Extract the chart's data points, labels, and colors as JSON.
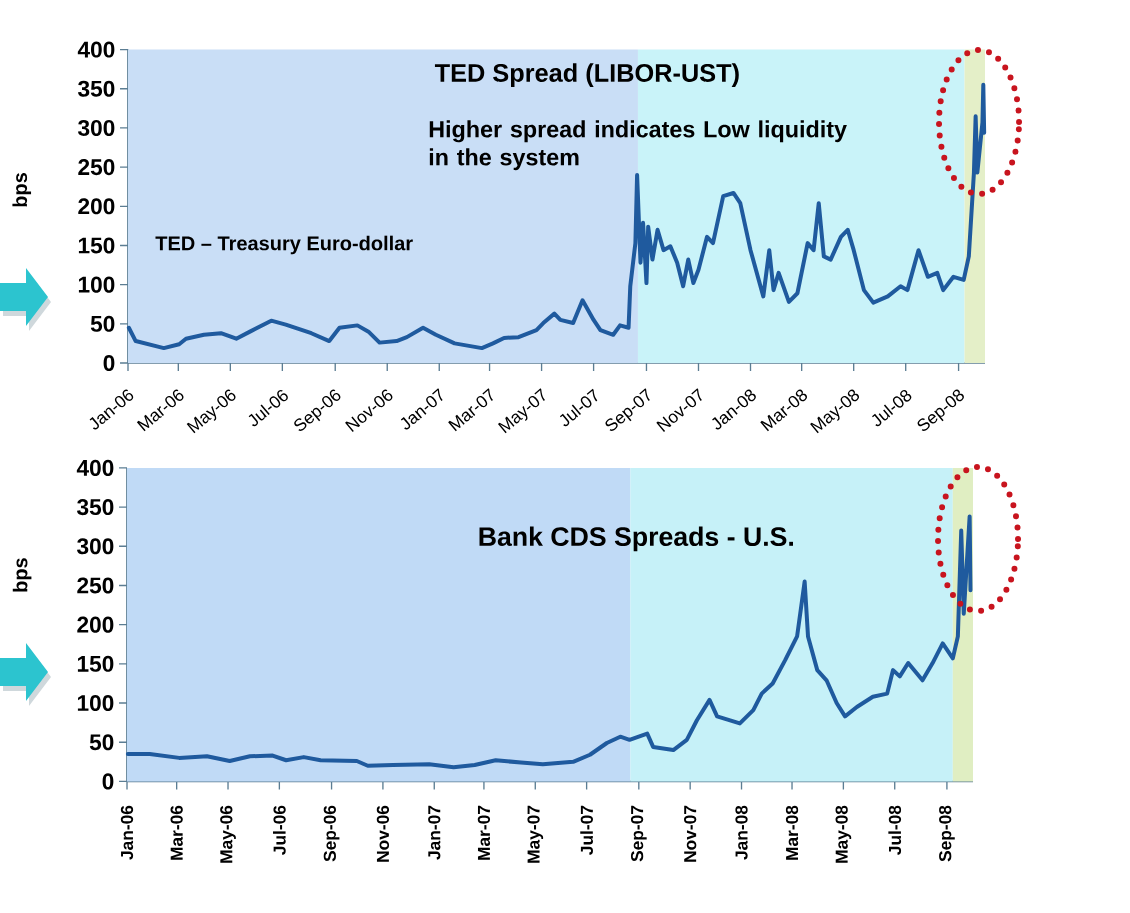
{
  "chart_data": [
    {
      "type": "line",
      "title": "TED Spread (LIBOR-UST)",
      "ylabel": "bps",
      "annotations": [
        "Higher spread indicates Low liquidity in the system",
        "TED – Treasury Euro-dollar"
      ],
      "x": [
        "2006-01-02",
        "2006-01-10",
        "2006-02-12",
        "2006-03-02",
        "2006-03-10",
        "2006-03-31",
        "2006-04-20",
        "2006-05-08",
        "2006-05-24",
        "2006-06-18",
        "2006-07-05",
        "2006-08-04",
        "2006-08-25",
        "2006-09-06",
        "2006-09-27",
        "2006-10-10",
        "2006-10-23",
        "2006-11-12",
        "2006-11-24",
        "2006-12-13",
        "2006-12-28",
        "2007-01-19",
        "2007-02-20",
        "2007-03-05",
        "2007-03-18",
        "2007-04-04",
        "2007-04-25",
        "2007-05-03",
        "2007-05-16",
        "2007-05-23",
        "2007-06-07",
        "2007-06-18",
        "2007-07-01",
        "2007-07-09",
        "2007-07-24",
        "2007-08-01",
        "2007-08-11",
        "2007-08-13",
        "2007-08-19",
        "2007-08-21",
        "2007-08-25",
        "2007-08-28",
        "2007-09-01",
        "2007-09-03",
        "2007-09-08",
        "2007-09-14",
        "2007-09-21",
        "2007-09-29",
        "2007-10-07",
        "2007-10-14",
        "2007-10-20",
        "2007-10-26",
        "2007-11-01",
        "2007-11-11",
        "2007-11-18",
        "2007-11-30",
        "2007-12-12",
        "2007-12-20",
        "2008-01-01",
        "2008-01-16",
        "2008-01-23",
        "2008-01-28",
        "2008-02-03",
        "2008-02-15",
        "2008-02-25",
        "2008-03-08",
        "2008-03-15",
        "2008-03-21",
        "2008-03-27",
        "2008-04-04",
        "2008-04-16",
        "2008-04-24",
        "2008-05-01",
        "2008-05-13",
        "2008-05-24",
        "2008-06-10",
        "2008-06-25",
        "2008-07-03",
        "2008-07-16",
        "2008-07-27",
        "2008-08-07",
        "2008-08-14",
        "2008-08-26",
        "2008-09-07",
        "2008-09-13",
        "2008-09-19",
        "2008-09-21",
        "2008-09-23",
        "2008-09-29",
        "2008-09-30",
        "2008-10-01"
      ],
      "series": [
        {
          "color": "#1f5a9e",
          "values": [
            45,
            28,
            19,
            24,
            31,
            36,
            38,
            31,
            40,
            54,
            49,
            38,
            28,
            45,
            48,
            40,
            26,
            28,
            33,
            45,
            36,
            25,
            19,
            25,
            32,
            33,
            42,
            51,
            63,
            55,
            51,
            80,
            55,
            42,
            36,
            48,
            45,
            98,
            153,
            240,
            128,
            179,
            102,
            174,
            132,
            170,
            144,
            149,
            128,
            98,
            132,
            102,
            119,
            161,
            153,
            213,
            217,
            204,
            144,
            85,
            144,
            93,
            115,
            78,
            89,
            153,
            144,
            204,
            136,
            132,
            161,
            170,
            144,
            93,
            77,
            85,
            98,
            93,
            144,
            110,
            115,
            93,
            110,
            106,
            136,
            243,
            315,
            243,
            307,
            355,
            294
          ]
        }
      ],
      "xlim": [
        "2006-01-01",
        "2008-10-02"
      ],
      "xticks": [
        {
          "value": "2006-01-01",
          "label": "Jan-06"
        },
        {
          "value": "2006-03-01",
          "label": "Mar-06"
        },
        {
          "value": "2006-05-01",
          "label": "May-06"
        },
        {
          "value": "2006-07-01",
          "label": "Jul-06"
        },
        {
          "value": "2006-09-01",
          "label": "Sep-06"
        },
        {
          "value": "2006-11-01",
          "label": "Nov-06"
        },
        {
          "value": "2007-01-01",
          "label": "Jan-07"
        },
        {
          "value": "2007-03-01",
          "label": "Mar-07"
        },
        {
          "value": "2007-05-01",
          "label": "May-07"
        },
        {
          "value": "2007-07-01",
          "label": "Jul-07"
        },
        {
          "value": "2007-09-01",
          "label": "Sep-07"
        },
        {
          "value": "2007-11-01",
          "label": "Nov-07"
        },
        {
          "value": "2008-01-01",
          "label": "Jan-08"
        },
        {
          "value": "2008-03-01",
          "label": "Mar-08"
        },
        {
          "value": "2008-05-01",
          "label": "May-08"
        },
        {
          "value": "2008-07-01",
          "label": "Jul-08"
        },
        {
          "value": "2008-09-01",
          "label": "Sep-08"
        }
      ],
      "ylim": [
        0,
        400
      ],
      "yticks": [
        0,
        50,
        100,
        150,
        200,
        250,
        300,
        350,
        400
      ],
      "bands": [
        {
          "axis": "x",
          "from": "2006-01-01",
          "to": "2007-08-22",
          "color": "#c9def6"
        },
        {
          "axis": "x",
          "from": "2007-08-22",
          "to": "2008-09-08",
          "color": "#c9f3f9"
        },
        {
          "axis": "x",
          "from": "2008-09-08",
          "to": "2008-10-02",
          "color": "#e4efc8"
        }
      ]
    },
    {
      "type": "line",
      "title": "Bank CDS Spreads - U.S.",
      "ylabel": "bps",
      "x": [
        "2006-01-02",
        "2006-01-28",
        "2006-03-04",
        "2006-04-06",
        "2006-05-03",
        "2006-05-27",
        "2006-06-23",
        "2006-07-09",
        "2006-07-30",
        "2006-08-19",
        "2006-10-01",
        "2006-10-14",
        "2006-11-13",
        "2006-12-26",
        "2007-01-24",
        "2007-02-18",
        "2007-03-15",
        "2007-04-14",
        "2007-05-10",
        "2007-06-15",
        "2007-07-05",
        "2007-07-25",
        "2007-08-10",
        "2007-08-21",
        "2007-09-11",
        "2007-09-18",
        "2007-10-12",
        "2007-10-28",
        "2007-11-09",
        "2007-11-24",
        "2007-12-03",
        "2007-12-30",
        "2008-01-15",
        "2008-01-25",
        "2008-02-07",
        "2008-02-22",
        "2008-03-07",
        "2008-03-16",
        "2008-03-20",
        "2008-03-31",
        "2008-04-11",
        "2008-04-23",
        "2008-05-03",
        "2008-05-17",
        "2008-06-05",
        "2008-06-22",
        "2008-06-29",
        "2008-07-07",
        "2008-07-17",
        "2008-08-03",
        "2008-08-15",
        "2008-08-27",
        "2008-09-08",
        "2008-09-14",
        "2008-09-18",
        "2008-09-21",
        "2008-09-28",
        "2008-09-29"
      ],
      "series": [
        {
          "color": "#1f5a9e",
          "values": [
            35,
            35,
            30,
            32,
            26,
            32,
            33,
            27,
            31,
            27,
            26,
            20,
            21,
            22,
            18,
            21,
            27,
            24,
            22,
            25,
            34,
            49,
            57,
            53,
            61,
            44,
            40,
            53,
            78,
            104,
            83,
            74,
            91,
            112,
            125,
            155,
            185,
            255,
            185,
            142,
            129,
            100,
            83,
            95,
            108,
            112,
            142,
            134,
            151,
            129,
            151,
            176,
            157,
            185,
            320,
            214,
            338,
            244
          ]
        }
      ],
      "xlim": [
        "2006-01-01",
        "2008-10-02"
      ],
      "xticks": [
        {
          "value": "2006-01-01",
          "label": "Jan-06"
        },
        {
          "value": "2006-03-01",
          "label": "Mar-06"
        },
        {
          "value": "2006-05-01",
          "label": "May-06"
        },
        {
          "value": "2006-07-01",
          "label": "Jul-06"
        },
        {
          "value": "2006-09-01",
          "label": "Sep-06"
        },
        {
          "value": "2006-11-01",
          "label": "Nov-06"
        },
        {
          "value": "2007-01-01",
          "label": "Jan-07"
        },
        {
          "value": "2007-03-01",
          "label": "Mar-07"
        },
        {
          "value": "2007-05-01",
          "label": "May-07"
        },
        {
          "value": "2007-07-01",
          "label": "Jul-07"
        },
        {
          "value": "2007-09-01",
          "label": "Sep-07"
        },
        {
          "value": "2007-11-01",
          "label": "Nov-07"
        },
        {
          "value": "2008-01-01",
          "label": "Jan-08"
        },
        {
          "value": "2008-03-01",
          "label": "Mar-08"
        },
        {
          "value": "2008-05-01",
          "label": "May-08"
        },
        {
          "value": "2008-07-01",
          "label": "Jul-08"
        },
        {
          "value": "2008-09-01",
          "label": "Sep-08"
        }
      ],
      "ylim": [
        0,
        400
      ],
      "yticks": [
        0,
        50,
        100,
        150,
        200,
        250,
        300,
        350,
        400
      ],
      "bands": [
        {
          "axis": "x",
          "from": "2006-01-01",
          "to": "2007-08-22",
          "color": "#c0daf6"
        },
        {
          "axis": "x",
          "from": "2007-08-22",
          "to": "2008-09-08",
          "color": "#c6f1f8"
        },
        {
          "axis": "x",
          "from": "2008-09-08",
          "to": "2008-10-02",
          "color": "#e0eec2"
        }
      ]
    }
  ]
}
